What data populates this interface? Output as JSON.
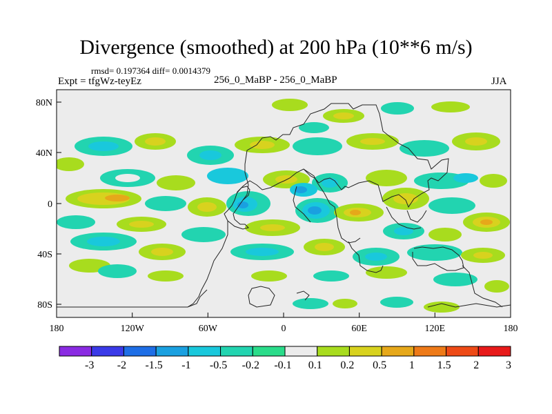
{
  "figure": {
    "title": "Divergence (smoothed) at 200 hPa (10**6 m/s)",
    "stats": "rmsd= 0.197364 diff= 0.0014379",
    "experiment": "Expt = tfgWz-teyEz",
    "cases": "256_0_MaBP - 256_0_MaBP",
    "season": "JJA"
  },
  "axes": {
    "x_ticks": [
      "180",
      "120W",
      "60W",
      "0",
      "60E",
      "120E",
      "180"
    ],
    "y_ticks": [
      "80N",
      "40N",
      "0",
      "40S",
      "80S"
    ]
  },
  "colorbar": {
    "labels": [
      "-3",
      "-2",
      "-1.5",
      "-1",
      "-0.5",
      "-0.2",
      "-0.1",
      "0.1",
      "0.2",
      "0.5",
      "1",
      "1.5",
      "2",
      "3"
    ],
    "colors": [
      "#8a2be2",
      "#3a3ae8",
      "#1e6ee6",
      "#1aa0e0",
      "#19c8dc",
      "#22d4b0",
      "#2adc8a",
      "#ececec",
      "#a8dc1e",
      "#d8d21e",
      "#e6a81a",
      "#ee7a18",
      "#ee4a16",
      "#e81a1a"
    ]
  },
  "chart_data": {
    "type": "heatmap",
    "title": "Divergence (smoothed) at 200 hPa (10**6 m/s)",
    "x_range_deg": [
      -180,
      180
    ],
    "y_range_deg": [
      -90,
      90
    ],
    "levels": [
      -3,
      -2,
      -1.5,
      -1,
      -0.5,
      -0.2,
      -0.1,
      0.1,
      0.2,
      0.5,
      1,
      1.5,
      2,
      3
    ],
    "background_value_range": [
      -0.1,
      0.1
    ],
    "features": [
      {
        "name": "divergence-blob",
        "lon": -150,
        "lat": 10,
        "value": 0.5
      },
      {
        "name": "convergence-blob",
        "lon": -30,
        "lat": 0,
        "value": -1
      },
      {
        "name": "convergence-blob",
        "lon": 25,
        "lat": -5,
        "value": -1.5
      },
      {
        "name": "divergence-blob",
        "lon": 60,
        "lat": -10,
        "value": 0.5
      },
      {
        "name": "divergence-blob",
        "lon": 165,
        "lat": -18,
        "value": 1
      }
    ]
  }
}
